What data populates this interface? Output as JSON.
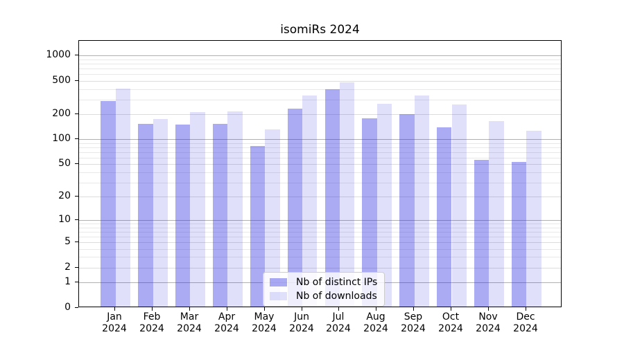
{
  "chart_data": {
    "type": "bar",
    "title": "isomiRs 2024",
    "categories": [
      "Jan",
      "Feb",
      "Mar",
      "Apr",
      "May",
      "Jun",
      "Jul",
      "Aug",
      "Sep",
      "Oct",
      "Nov",
      "Dec"
    ],
    "year_label": "2024",
    "series": [
      {
        "name": "Nb of distinct IPs",
        "color": "rgba(46,46,228,0.40)",
        "values": [
          280,
          150,
          146,
          148,
          80,
          225,
          385,
          172,
          195,
          135,
          55,
          52
        ]
      },
      {
        "name": "Nb of downloads",
        "color": "rgba(46,46,228,0.15)",
        "values": [
          395,
          170,
          208,
          210,
          128,
          325,
          470,
          260,
          325,
          255,
          160,
          124
        ]
      }
    ],
    "y_ticks": [
      0,
      1,
      2,
      5,
      10,
      20,
      50,
      100,
      200,
      500,
      1000
    ],
    "y_scale": "log1p",
    "ylim": [
      0,
      1500
    ],
    "grid": true,
    "legend_position": "lower center"
  }
}
